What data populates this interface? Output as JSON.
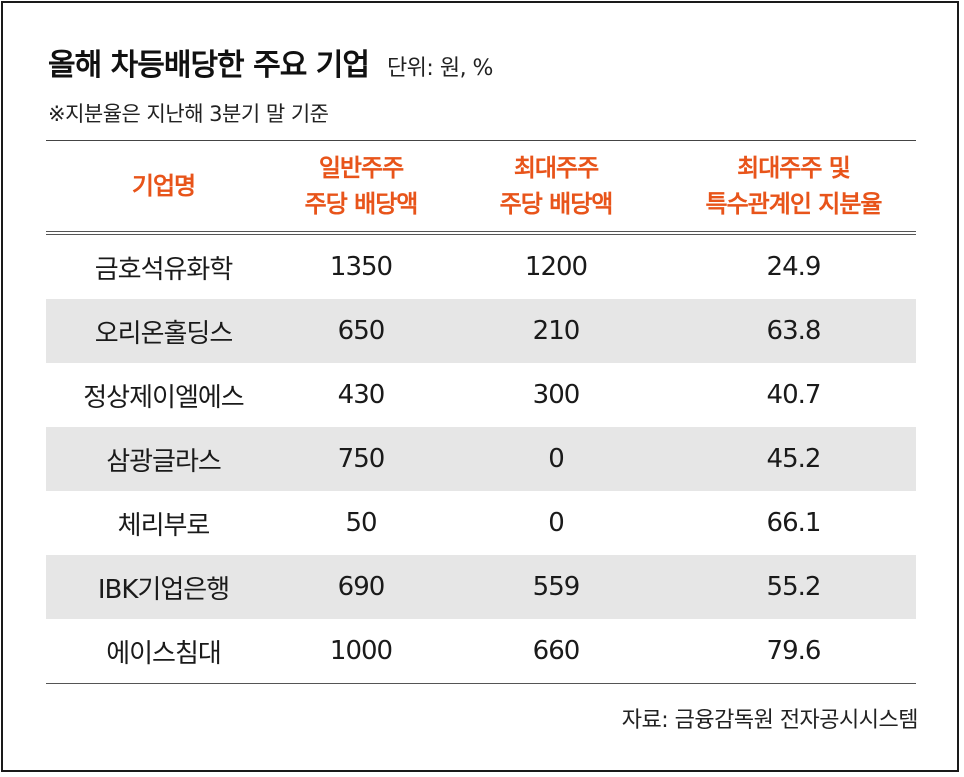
{
  "title": "올해 차등배당한 주요 기업",
  "unit": "단위: 원, %",
  "note": "※지분율은 지난해 3분기 말 기준",
  "headers": {
    "company": "기업명",
    "general_line1": "일반주주",
    "general_line2": "주당 배당액",
    "major_line1": "최대주주",
    "major_line2": "주당 배당액",
    "stake_line1": "최대주주 및",
    "stake_line2": "특수관계인 지분율"
  },
  "rows": [
    {
      "company": "금호석유화학",
      "general": "1350",
      "major": "1200",
      "stake": "24.9"
    },
    {
      "company": "오리온홀딩스",
      "general": "650",
      "major": "210",
      "stake": "63.8"
    },
    {
      "company": "정상제이엘에스",
      "general": "430",
      "major": "300",
      "stake": "40.7"
    },
    {
      "company": "삼광글라스",
      "general": "750",
      "major": "0",
      "stake": "45.2"
    },
    {
      "company": "체리부로",
      "general": "50",
      "major": "0",
      "stake": "66.1"
    },
    {
      "company": "IBK기업은행",
      "general": "690",
      "major": "559",
      "stake": "55.2"
    },
    {
      "company": "에이스침대",
      "general": "1000",
      "major": "660",
      "stake": "79.6"
    }
  ],
  "source": "자료: 금융감독원 전자공시시스템",
  "colors": {
    "header_text": "#e8541a",
    "shade": "#e6e6e6"
  }
}
